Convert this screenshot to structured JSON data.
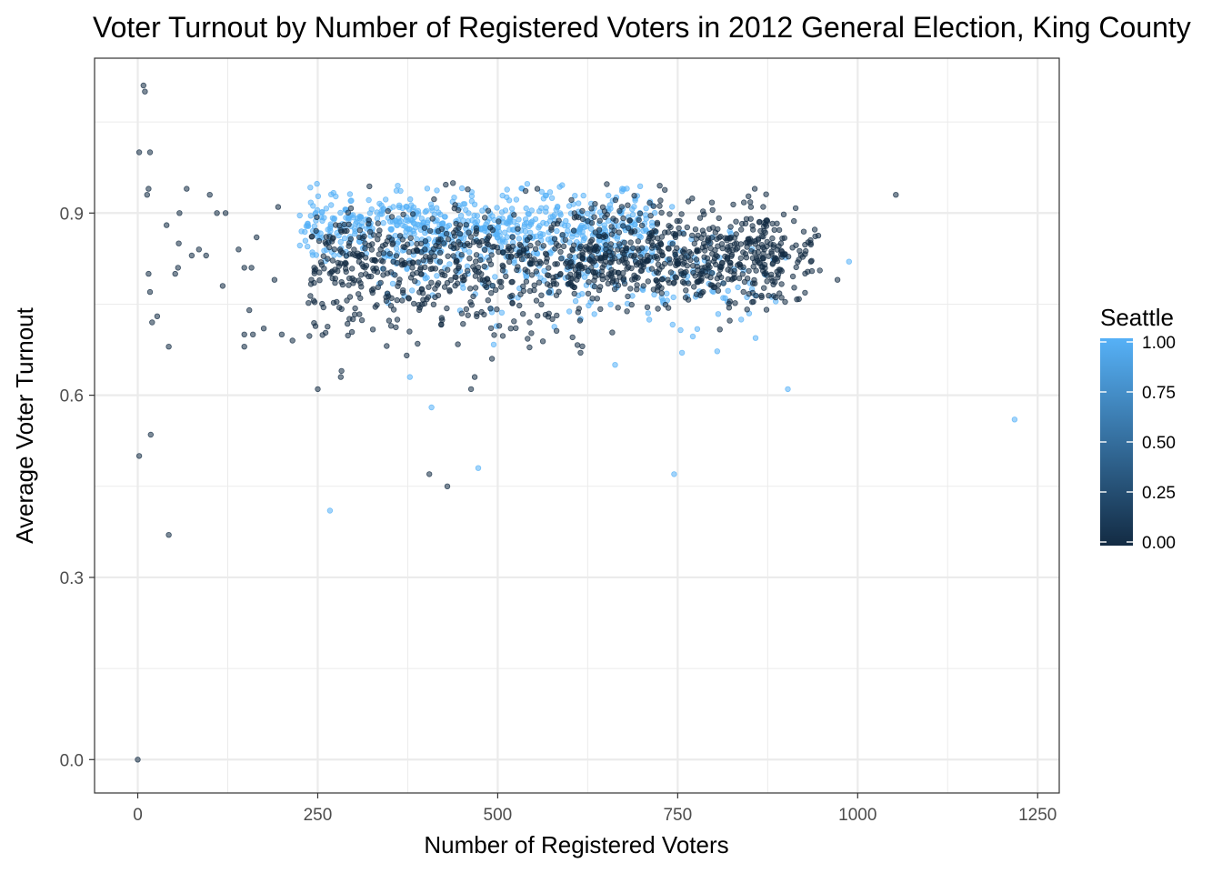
{
  "chart_data": {
    "type": "scatter",
    "title": "Voter Turnout by Number of Registered Voters in 2012 General Election, King County",
    "xlabel": "Number of Registered Voters",
    "ylabel": "Average Voter Turnout",
    "xlim": [
      -60,
      1280
    ],
    "ylim": [
      -0.055,
      1.155
    ],
    "x_ticks": [
      0,
      250,
      500,
      750,
      1000,
      1250
    ],
    "x_tick_labels": [
      "0",
      "250",
      "500",
      "750",
      "1000",
      "1250"
    ],
    "y_ticks": [
      0.0,
      0.3,
      0.6,
      0.9
    ],
    "y_tick_labels": [
      "0.0",
      "0.3",
      "0.6",
      "0.9"
    ],
    "grid": true,
    "legend": {
      "title": "Seattle",
      "position": "right",
      "type": "colorbar",
      "ticks": [
        0,
        0.25,
        0.5,
        0.75,
        1
      ],
      "tick_labels": [
        "0.00",
        "0.25",
        "0.50",
        "0.75",
        "1.00"
      ],
      "color_low": "#132b43",
      "color_high": "#56b1f7"
    },
    "colors": {
      "seattle_low": "#132b43",
      "seattle_high": "#56b1f7",
      "panel_border": "#333333",
      "grid": "#ebebeb"
    },
    "point_opacity": 0.55,
    "outlier_points": [
      {
        "x": 8,
        "y": 1.11,
        "seattle": 0
      },
      {
        "x": 10,
        "y": 1.1,
        "seattle": 0
      },
      {
        "x": 2,
        "y": 1.0,
        "seattle": 0
      },
      {
        "x": 17,
        "y": 1.0,
        "seattle": 0
      },
      {
        "x": 15,
        "y": 0.94,
        "seattle": 0
      },
      {
        "x": 13,
        "y": 0.93,
        "seattle": 0
      },
      {
        "x": 68,
        "y": 0.94,
        "seattle": 0
      },
      {
        "x": 100,
        "y": 0.93,
        "seattle": 0
      },
      {
        "x": 58,
        "y": 0.9,
        "seattle": 0
      },
      {
        "x": 110,
        "y": 0.9,
        "seattle": 0
      },
      {
        "x": 122,
        "y": 0.9,
        "seattle": 0
      },
      {
        "x": 40,
        "y": 0.88,
        "seattle": 0
      },
      {
        "x": 85,
        "y": 0.84,
        "seattle": 0
      },
      {
        "x": 95,
        "y": 0.83,
        "seattle": 0
      },
      {
        "x": 75,
        "y": 0.83,
        "seattle": 0
      },
      {
        "x": 57,
        "y": 0.85,
        "seattle": 0
      },
      {
        "x": 56,
        "y": 0.81,
        "seattle": 0
      },
      {
        "x": 52,
        "y": 0.8,
        "seattle": 0
      },
      {
        "x": 15,
        "y": 0.8,
        "seattle": 0
      },
      {
        "x": 118,
        "y": 0.78,
        "seattle": 0
      },
      {
        "x": 17,
        "y": 0.77,
        "seattle": 0
      },
      {
        "x": 27,
        "y": 0.73,
        "seattle": 0
      },
      {
        "x": 20,
        "y": 0.72,
        "seattle": 0
      },
      {
        "x": 43,
        "y": 0.68,
        "seattle": 0
      },
      {
        "x": 140,
        "y": 0.84,
        "seattle": 0
      },
      {
        "x": 148,
        "y": 0.81,
        "seattle": 0
      },
      {
        "x": 158,
        "y": 0.81,
        "seattle": 0
      },
      {
        "x": 155,
        "y": 0.74,
        "seattle": 0
      },
      {
        "x": 148,
        "y": 0.7,
        "seattle": 0
      },
      {
        "x": 148,
        "y": 0.68,
        "seattle": 0
      },
      {
        "x": 160,
        "y": 0.7,
        "seattle": 0
      },
      {
        "x": 175,
        "y": 0.71,
        "seattle": 0
      },
      {
        "x": 190,
        "y": 0.79,
        "seattle": 0
      },
      {
        "x": 200,
        "y": 0.7,
        "seattle": 0
      },
      {
        "x": 215,
        "y": 0.69,
        "seattle": 0
      },
      {
        "x": 165,
        "y": 0.86,
        "seattle": 0
      },
      {
        "x": 195,
        "y": 0.91,
        "seattle": 0
      },
      {
        "x": 18,
        "y": 0.535,
        "seattle": 0
      },
      {
        "x": 2,
        "y": 0.5,
        "seattle": 0
      },
      {
        "x": 43,
        "y": 0.37,
        "seattle": 0
      },
      {
        "x": 0,
        "y": 0.0,
        "seattle": 0
      },
      {
        "x": 250,
        "y": 0.61,
        "seattle": 0
      },
      {
        "x": 283,
        "y": 0.64,
        "seattle": 0
      },
      {
        "x": 282,
        "y": 0.63,
        "seattle": 0
      },
      {
        "x": 267,
        "y": 0.41,
        "seattle": 1
      },
      {
        "x": 405,
        "y": 0.47,
        "seattle": 0
      },
      {
        "x": 430,
        "y": 0.45,
        "seattle": 0
      },
      {
        "x": 473,
        "y": 0.48,
        "seattle": 1
      },
      {
        "x": 408,
        "y": 0.58,
        "seattle": 1
      },
      {
        "x": 378,
        "y": 0.63,
        "seattle": 1
      },
      {
        "x": 463,
        "y": 0.61,
        "seattle": 0
      },
      {
        "x": 468,
        "y": 0.63,
        "seattle": 0
      },
      {
        "x": 745,
        "y": 0.47,
        "seattle": 1
      },
      {
        "x": 903,
        "y": 0.61,
        "seattle": 1
      },
      {
        "x": 1218,
        "y": 0.56,
        "seattle": 1
      },
      {
        "x": 1053,
        "y": 0.93,
        "seattle": 0
      },
      {
        "x": 988,
        "y": 0.82,
        "seattle": 1
      },
      {
        "x": 857,
        "y": 0.94,
        "seattle": 0
      },
      {
        "x": 663,
        "y": 0.65,
        "seattle": 1
      },
      {
        "x": 756,
        "y": 0.67,
        "seattle": 1
      },
      {
        "x": 492,
        "y": 0.66,
        "seattle": 0
      },
      {
        "x": 615,
        "y": 0.67,
        "seattle": 0
      },
      {
        "x": 725,
        "y": 0.945,
        "seattle": 0
      },
      {
        "x": 555,
        "y": 0.94,
        "seattle": 0
      },
      {
        "x": 935,
        "y": 0.82,
        "seattle": 0
      },
      {
        "x": 972,
        "y": 0.79,
        "seattle": 0
      }
    ],
    "point_cloud": {
      "seed": 2012,
      "clusters": [
        {
          "count": 620,
          "seattle": 1,
          "x_range": [
            225,
            720
          ],
          "y_mean": 0.875,
          "y_sd": 0.03
        },
        {
          "count": 200,
          "seattle": 1,
          "x_range": [
            330,
            900
          ],
          "y_mean": 0.8,
          "y_sd": 0.05
        },
        {
          "count": 900,
          "seattle": 0,
          "x_range": [
            240,
            900
          ],
          "y_mean": 0.815,
          "y_sd": 0.042
        },
        {
          "count": 260,
          "seattle": 0,
          "x_range": [
            600,
            950
          ],
          "y_mean": 0.835,
          "y_sd": 0.04
        },
        {
          "count": 60,
          "seattle": 0,
          "x_range": [
            230,
            620
          ],
          "y_mean": 0.72,
          "y_sd": 0.03
        }
      ]
    }
  }
}
